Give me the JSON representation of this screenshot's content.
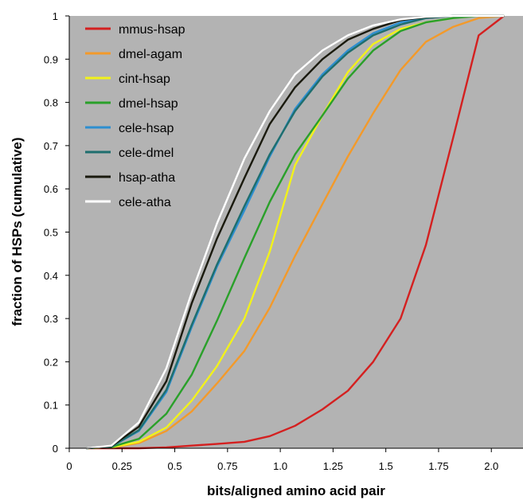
{
  "chart_data": {
    "type": "line",
    "title": "",
    "xlabel": "bits/aligned amino acid pair",
    "ylabel": "fraction of HSPs (cumulative)",
    "xlim": [
      0,
      2.15
    ],
    "ylim": [
      0,
      1
    ],
    "x_ticks": [
      "0",
      "0.25",
      "0.5",
      "0.75",
      "1.0",
      "1.25",
      "1.5",
      "1.75",
      "2.0"
    ],
    "y_ticks": [
      "0",
      "0.1",
      "0.2",
      "0.3",
      "0.4",
      "0.5",
      "0.6",
      "0.7",
      "0.8",
      "0.9",
      "1"
    ],
    "grid": false,
    "legend_position": "top-left",
    "plot_background": "#b3b3b3",
    "series": [
      {
        "name": "mmus-hsap",
        "color": "#d42020",
        "x": [
          0.08,
          0.2,
          0.33,
          0.46,
          0.58,
          0.7,
          0.83,
          0.95,
          1.07,
          1.2,
          1.32,
          1.44,
          1.57,
          1.69,
          1.82,
          1.94,
          2.06
        ],
        "y": [
          0,
          0,
          0,
          0.002,
          0.006,
          0.01,
          0.015,
          0.028,
          0.052,
          0.09,
          0.133,
          0.2,
          0.3,
          0.47,
          0.72,
          0.955,
          1.0
        ]
      },
      {
        "name": "dmel-agam",
        "color": "#f39a2a",
        "x": [
          0.08,
          0.2,
          0.33,
          0.46,
          0.58,
          0.7,
          0.83,
          0.95,
          1.07,
          1.2,
          1.32,
          1.44,
          1.57,
          1.69,
          1.82,
          1.94,
          2.06
        ],
        "y": [
          0,
          0.002,
          0.012,
          0.04,
          0.085,
          0.15,
          0.225,
          0.325,
          0.445,
          0.565,
          0.675,
          0.775,
          0.875,
          0.94,
          0.975,
          0.995,
          1.0
        ]
      },
      {
        "name": "cint-hsap",
        "color": "#f2f21a",
        "x": [
          0.08,
          0.2,
          0.33,
          0.46,
          0.58,
          0.7,
          0.83,
          0.95,
          1.07,
          1.2,
          1.32,
          1.44,
          1.57,
          1.69,
          1.82,
          1.94,
          2.06
        ],
        "y": [
          0,
          0.002,
          0.015,
          0.048,
          0.11,
          0.19,
          0.3,
          0.455,
          0.655,
          0.77,
          0.87,
          0.935,
          0.97,
          0.985,
          0.995,
          1.0,
          1.0
        ]
      },
      {
        "name": "dmel-hsap",
        "color": "#2aa02a",
        "x": [
          0.08,
          0.2,
          0.33,
          0.46,
          0.58,
          0.7,
          0.83,
          0.95,
          1.07,
          1.2,
          1.32,
          1.44,
          1.57,
          1.69,
          1.82,
          1.94,
          2.06
        ],
        "y": [
          0,
          0.003,
          0.022,
          0.08,
          0.17,
          0.295,
          0.44,
          0.57,
          0.68,
          0.77,
          0.855,
          0.92,
          0.965,
          0.985,
          0.995,
          1.0,
          1.0
        ]
      },
      {
        "name": "cele-hsap",
        "color": "#2e8fd0",
        "x": [
          0.08,
          0.2,
          0.33,
          0.46,
          0.58,
          0.7,
          0.83,
          0.95,
          1.07,
          1.2,
          1.32,
          1.44,
          1.57,
          1.69,
          1.82,
          1.94,
          2.06
        ],
        "y": [
          0,
          0.004,
          0.04,
          0.13,
          0.28,
          0.42,
          0.55,
          0.675,
          0.785,
          0.865,
          0.92,
          0.96,
          0.985,
          0.995,
          1.0,
          1.0,
          1.0
        ]
      },
      {
        "name": "cele-dmel",
        "color": "#1e6e6e",
        "x": [
          0.08,
          0.2,
          0.33,
          0.46,
          0.58,
          0.7,
          0.83,
          0.95,
          1.07,
          1.2,
          1.32,
          1.44,
          1.57,
          1.69,
          1.82,
          1.94,
          2.06
        ],
        "y": [
          0,
          0.004,
          0.042,
          0.135,
          0.285,
          0.425,
          0.56,
          0.68,
          0.78,
          0.86,
          0.915,
          0.955,
          0.98,
          0.995,
          1.0,
          1.0,
          1.0
        ]
      },
      {
        "name": "hsap-atha",
        "color": "#1a1a0e",
        "x": [
          0.08,
          0.2,
          0.33,
          0.46,
          0.58,
          0.7,
          0.83,
          0.95,
          1.07,
          1.2,
          1.32,
          1.44,
          1.57,
          1.69,
          1.82,
          1.94,
          2.06
        ],
        "y": [
          0,
          0.005,
          0.05,
          0.155,
          0.335,
          0.485,
          0.625,
          0.75,
          0.835,
          0.9,
          0.945,
          0.97,
          0.99,
          0.997,
          1.0,
          1.0,
          1.0
        ]
      },
      {
        "name": "cele-atha",
        "color": "#ffffff",
        "x": [
          0.08,
          0.2,
          0.33,
          0.46,
          0.58,
          0.7,
          0.83,
          0.95,
          1.07,
          1.2,
          1.32,
          1.44,
          1.57,
          1.69,
          1.82,
          1.94,
          2.06
        ],
        "y": [
          0,
          0.006,
          0.06,
          0.185,
          0.36,
          0.52,
          0.67,
          0.78,
          0.865,
          0.92,
          0.955,
          0.978,
          0.992,
          0.998,
          1.0,
          1.0,
          1.0
        ]
      }
    ]
  }
}
